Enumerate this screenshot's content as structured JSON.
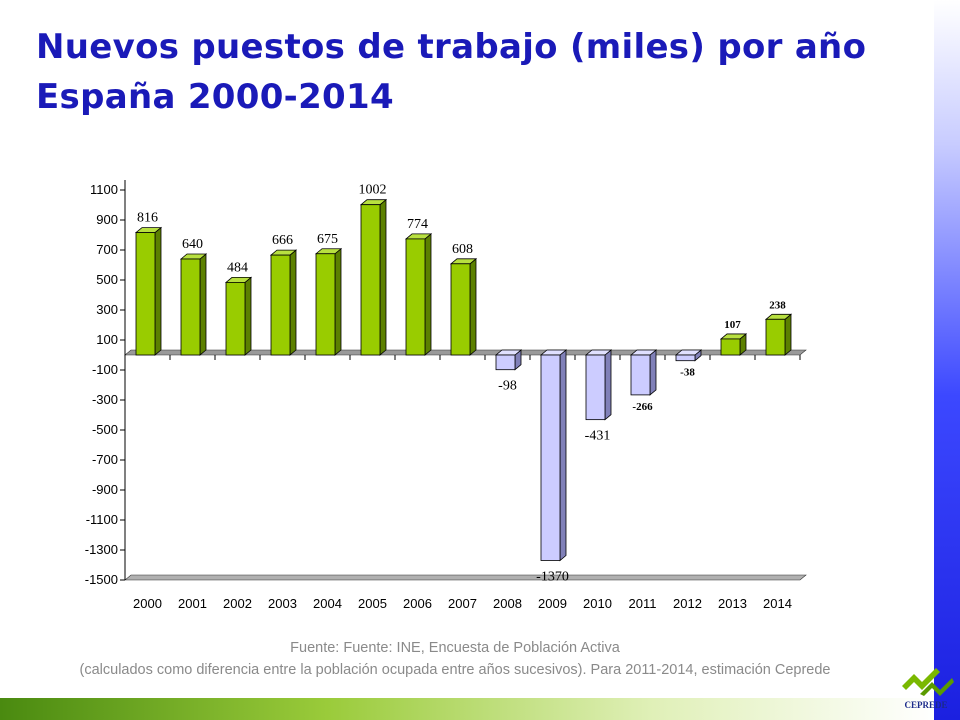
{
  "title": {
    "line1": "Nuevos puestos de trabajo (miles) por año",
    "line2": "España 2000-2014"
  },
  "source": {
    "line1": "Fuente: Fuente: INE, Encuesta de Población Activa",
    "line2": "(calculados como diferencia entre la población ocupada entre años sucesivos). Para 2011-2014, estimación Ceprede"
  },
  "logo": {
    "text": "CEPREDE"
  },
  "colors": {
    "title": "#1a1ab8",
    "positive_bar": "#99cc00",
    "negative_bar": "#ccccff"
  },
  "chart_data": {
    "type": "bar",
    "categories": [
      "2000",
      "2001",
      "2002",
      "2003",
      "2004",
      "2005",
      "2006",
      "2007",
      "2008",
      "2009",
      "2010",
      "2011",
      "2012",
      "2013",
      "2014"
    ],
    "values": [
      816,
      640,
      484,
      666,
      675,
      1002,
      774,
      608,
      -98,
      -1370,
      -431,
      -266,
      -38,
      107,
      238
    ],
    "data_labels": [
      "816",
      "640",
      "484",
      "666",
      "675",
      "1002",
      "774",
      "608",
      "-98",
      "-1370",
      "-431",
      "-266",
      "-38",
      "107",
      "238"
    ],
    "y_ticks": [
      1100,
      900,
      700,
      500,
      300,
      100,
      -100,
      -300,
      -500,
      -700,
      -900,
      -1100,
      -1300,
      -1500
    ],
    "ylim": [
      -1500,
      1100
    ],
    "grid": false,
    "legend": "none",
    "bar_style": "3d"
  }
}
